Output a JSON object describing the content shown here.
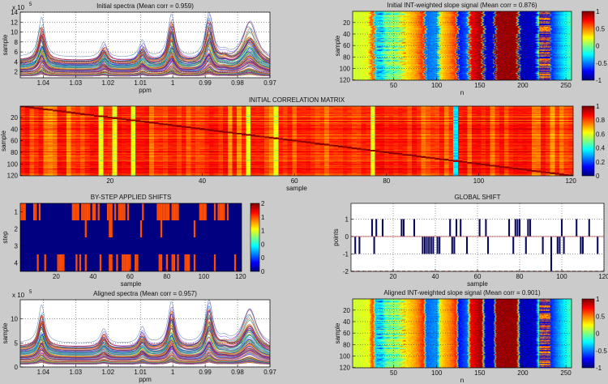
{
  "chart_data": [
    {
      "type": "line",
      "title": "Initial spectra (Mean corr = 0.959)",
      "xlabel": "ppm",
      "ylabel": "sample",
      "y_multiplier": "x 10",
      "y_exponent": "5",
      "xlim": [
        1.0471,
        0.97
      ],
      "ylim": [
        0.8,
        14
      ],
      "xticks": [
        1.04,
        1.03,
        1.02,
        1.01,
        1,
        0.99,
        0.98,
        0.97
      ],
      "yticks": [
        2,
        4,
        6,
        8,
        10,
        12,
        14
      ],
      "grid": true,
      "n_series": 120,
      "baseline_max": [
        5.0,
        4.3
      ],
      "floor": 0.9,
      "peaks": [
        {
          "ppm": 1.0405,
          "height": 8.0,
          "width": 0.0012
        },
        {
          "ppm": 1.0213,
          "height": 3.1,
          "width": 0.0012
        },
        {
          "ppm": 1.0094,
          "height": 3.5,
          "width": 0.0012
        },
        {
          "ppm": 1.0004,
          "height": 8.8,
          "width": 0.0013
        },
        {
          "ppm": 0.9888,
          "height": 9.0,
          "width": 0.0014
        },
        {
          "ppm": 0.984,
          "height": 1.0,
          "width": 0.0015
        },
        {
          "ppm": 0.9763,
          "height": 7.5,
          "width": 0.0026
        }
      ],
      "shift_spread": 0.0004
    },
    {
      "type": "heatmap",
      "title": "Initial INT-weighted slope signal (Mean corr = 0.876)",
      "xlabel": "n",
      "ylabel": "sample",
      "xlim": [
        2.5,
        256.5
      ],
      "ylim": [
        0.5,
        120.5
      ],
      "xticks": [
        50,
        100,
        150,
        200,
        250
      ],
      "yticks": [
        20,
        40,
        60,
        80,
        100,
        120
      ],
      "grid": true,
      "colorbar": {
        "range": [
          -1,
          1
        ],
        "ticks": [
          1,
          0.5,
          0,
          -0.5,
          -1
        ]
      },
      "row_shift_spread": 2.5,
      "profile": [
        [
          1,
          0.15
        ],
        [
          20,
          0.2
        ],
        [
          22,
          0.55
        ],
        [
          25,
          0.6
        ],
        [
          27,
          -0.35
        ],
        [
          35,
          -0.3
        ],
        [
          40,
          -0.05
        ],
        [
          55,
          0.05
        ],
        [
          60,
          0.25
        ],
        [
          75,
          0.45
        ],
        [
          84,
          0.7
        ],
        [
          86,
          -0.55
        ],
        [
          100,
          -0.45
        ],
        [
          103,
          0.3
        ],
        [
          115,
          0.5
        ],
        [
          122,
          0.7
        ],
        [
          124,
          -0.75
        ],
        [
          135,
          -0.55
        ],
        [
          138,
          0.75
        ],
        [
          152,
          0.95
        ],
        [
          155,
          -0.85
        ],
        [
          166,
          -0.85
        ],
        [
          168,
          0.95
        ],
        [
          193,
          0.95
        ],
        [
          196,
          -0.9
        ],
        [
          215,
          -0.85
        ],
        [
          220,
          0.3
        ],
        [
          228,
          0.3
        ],
        [
          232,
          -0.7
        ],
        [
          245,
          -0.35
        ],
        [
          256,
          -0.1
        ]
      ]
    },
    {
      "type": "heatmap",
      "title": "INITIAL CORRELATION MATRIX",
      "xlabel": "sample",
      "ylabel": "sample",
      "xlim": [
        0.5,
        120.5
      ],
      "ylim": [
        0.5,
        120.5
      ],
      "xticks": [
        20,
        40,
        60,
        80,
        100,
        120
      ],
      "yticks": [
        20,
        40,
        60,
        80,
        100,
        120
      ],
      "grid": false,
      "colorbar": {
        "range": [
          0,
          1
        ],
        "ticks": [
          1,
          0.8,
          0.6,
          0.4,
          0.2,
          0
        ]
      },
      "diagonal": 1,
      "typical_range": [
        0.6,
        0.98
      ],
      "low_corr_samples": [
        18,
        21,
        25,
        50,
        56,
        77,
        95
      ]
    },
    {
      "type": "heatmap",
      "title": "BY-STEP APPLIED SHIFTS",
      "xlabel": "sample",
      "ylabel": "step",
      "xlim": [
        0.5,
        120.5
      ],
      "ylim": [
        0.5,
        4.5
      ],
      "xticks": [
        20,
        40,
        60,
        80,
        100,
        120
      ],
      "yticks": [
        1,
        2,
        3,
        4
      ],
      "grid": false,
      "colorbar": {
        "range": [
          0,
          2
        ],
        "tick_values": [
          2,
          1.6,
          1.2,
          0.8,
          0.4,
          0
        ],
        "tick_labels": [
          "2",
          "1",
          "1",
          "0",
          "0",
          "0"
        ]
      },
      "shift_value": 1.6,
      "steps": [
        {
          "step": 1,
          "shifted_samples": [
            1,
            2,
            3,
            8,
            9,
            11,
            29,
            30,
            31,
            32,
            34,
            35,
            36,
            37,
            38,
            40,
            41,
            43,
            48,
            49,
            50,
            52,
            54,
            55,
            56,
            57,
            59,
            67,
            75,
            76,
            77,
            78,
            79,
            80,
            81,
            83,
            84,
            85,
            86,
            98,
            99,
            100,
            101,
            106,
            108,
            109,
            110,
            111,
            113
          ]
        },
        {
          "step": 2,
          "shifted_samples": [
            36,
            49,
            50,
            66,
            77,
            95
          ]
        },
        {
          "step": 3,
          "shifted_samples": []
        },
        {
          "step": 4,
          "shifted_samples": [
            10,
            14,
            21,
            22,
            23,
            24,
            31,
            33,
            36,
            44,
            49,
            50,
            53,
            56,
            57,
            58,
            59,
            60,
            63,
            64,
            76,
            77,
            80,
            83,
            84,
            86,
            90,
            91,
            92,
            95,
            106,
            117
          ]
        }
      ]
    },
    {
      "type": "bar",
      "title": "GLOBAL SHIFT",
      "xlabel": "sample",
      "ylabel": "points",
      "xlim": [
        0,
        120
      ],
      "ylim": [
        -2,
        1.9
      ],
      "xticks": [
        20,
        40,
        60,
        80,
        100,
        120
      ],
      "yticks": [
        -2,
        -1,
        0,
        1
      ],
      "grid": true,
      "bar_color": "#0b0b5e",
      "reference_lines": [
        0,
        -2
      ],
      "values": [
        0,
        -1,
        0,
        -1,
        0,
        0,
        0,
        0,
        0,
        1,
        -1,
        1,
        0,
        0,
        1,
        0,
        0,
        0,
        0,
        0,
        0,
        0,
        0,
        1,
        1,
        0,
        0,
        0,
        0,
        1,
        0,
        0,
        0,
        -1,
        -1,
        -1,
        -1,
        -1,
        -1,
        0,
        -1,
        -1,
        0,
        0,
        0,
        0,
        1,
        -1,
        -1,
        1,
        0,
        1,
        0,
        0,
        -1,
        0,
        0,
        0,
        0,
        0,
        1,
        0,
        0,
        1,
        -1,
        0,
        0,
        0,
        0,
        0,
        0,
        0,
        0,
        0,
        1,
        0,
        -1,
        1,
        1,
        1,
        0,
        0,
        -1,
        1,
        1,
        0,
        0,
        0,
        0,
        0,
        -1,
        0,
        0,
        0,
        -2,
        0,
        0,
        -1,
        -1,
        1,
        -1,
        0,
        0,
        0,
        0,
        0,
        1,
        0,
        -1,
        -1,
        0,
        0,
        1,
        0,
        0,
        0,
        -1,
        0,
        0,
        0
      ]
    },
    {
      "type": "line",
      "title": "Aligned spectra (Mean corr = 0.957)",
      "xlabel": "ppm",
      "ylabel": "sample",
      "y_multiplier": "x 10",
      "y_exponent": "5",
      "xlim": [
        1.0471,
        0.97
      ],
      "ylim": [
        0,
        14
      ],
      "xticks": [
        1.04,
        1.03,
        1.02,
        1.01,
        1,
        0.99,
        0.98,
        0.97
      ],
      "yticks": [
        0,
        5,
        10
      ],
      "grid": true,
      "n_series": 120,
      "baseline_max": [
        5.0,
        4.3
      ],
      "floor": 0.3,
      "peaks": [
        {
          "ppm": 1.0405,
          "height": 8.0,
          "width": 0.0012
        },
        {
          "ppm": 1.0213,
          "height": 3.1,
          "width": 0.0012
        },
        {
          "ppm": 1.0094,
          "height": 3.5,
          "width": 0.0012
        },
        {
          "ppm": 1.0004,
          "height": 8.8,
          "width": 0.0013
        },
        {
          "ppm": 0.9888,
          "height": 9.0,
          "width": 0.0014
        },
        {
          "ppm": 0.984,
          "height": 1.0,
          "width": 0.0015
        },
        {
          "ppm": 0.9763,
          "height": 7.5,
          "width": 0.0026
        }
      ],
      "shift_spread": 0.00015
    },
    {
      "type": "heatmap",
      "title": "Aligned INT-weighted slope signal (Mean corr = 0.901)",
      "xlabel": "n",
      "ylabel": "sample",
      "xlim": [
        2.5,
        256.5
      ],
      "ylim": [
        0.5,
        120.5
      ],
      "xticks": [
        50,
        100,
        150,
        200,
        250
      ],
      "yticks": [
        20,
        40,
        60,
        80,
        100,
        120
      ],
      "grid": true,
      "colorbar": {
        "range": [
          -1,
          1
        ],
        "ticks": [
          1,
          0.5,
          0,
          -0.5,
          -1
        ]
      },
      "row_shift_spread": 1.0,
      "profile_ref": "same profile as initial slope signal"
    }
  ]
}
